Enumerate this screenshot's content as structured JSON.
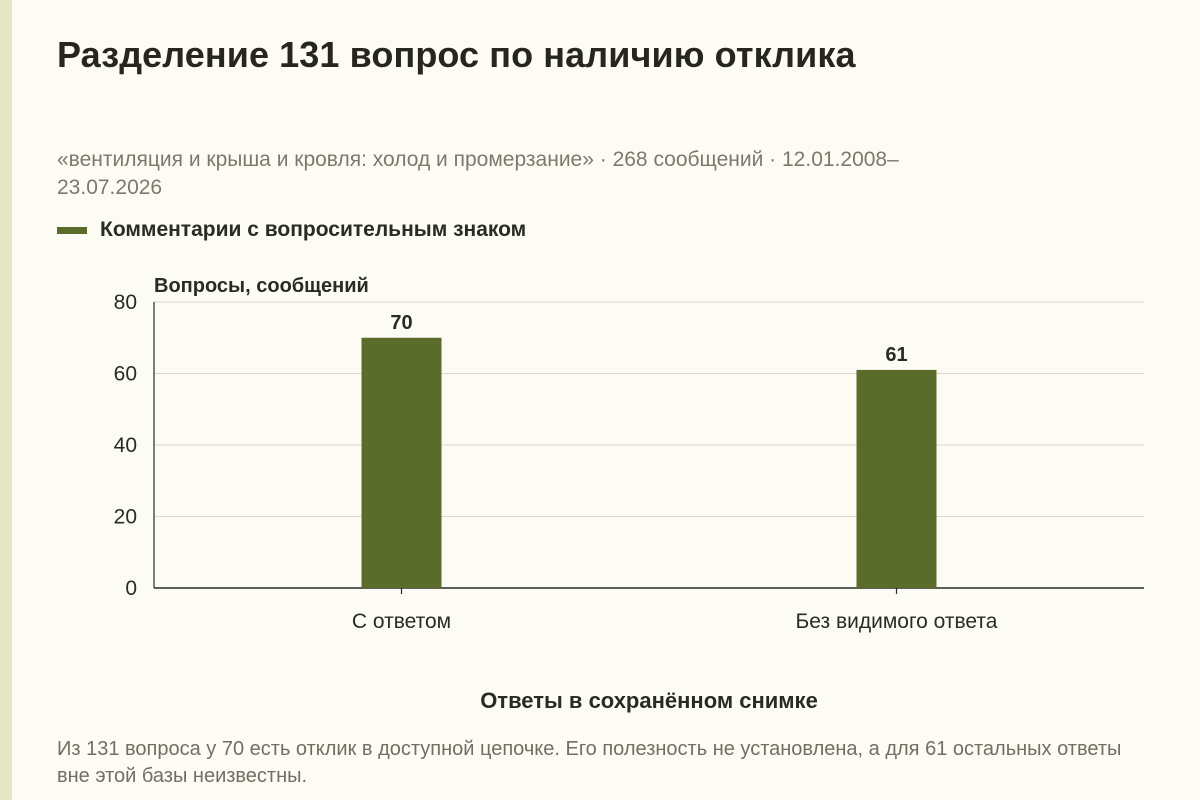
{
  "header": {
    "title": "Разделение 131 вопрос по наличию отклика",
    "subtitle": "«вентиляция и крыша и кровля: холод и промерзание» · 268 сообщений · 12.01.2008–23.07.2026"
  },
  "legend": {
    "label": "Комментарии с вопросительным знаком"
  },
  "colors": {
    "bar": "#5b6b2a",
    "grid": "#d9d9d0",
    "axis": "#2b2b26"
  },
  "chart_data": {
    "type": "bar",
    "categories": [
      "С ответом",
      "Без видимого ответа"
    ],
    "series": [
      {
        "name": "Комментарии с вопросительным знаком",
        "values": [
          70,
          61
        ]
      }
    ],
    "ylabel": "Вопросы, сообщений",
    "xlabel": "Ответы в сохранённом снимке",
    "ylim": [
      0,
      80
    ],
    "yticks": [
      0,
      20,
      40,
      60,
      80
    ],
    "grid": true,
    "legend_position": "top-left"
  },
  "footer": {
    "note": "Из 131 вопроса у 70 есть отклик в доступной цепочке. Его полезность не установлена, а для 61 остальных ответы вне этой базы неизвестны."
  }
}
